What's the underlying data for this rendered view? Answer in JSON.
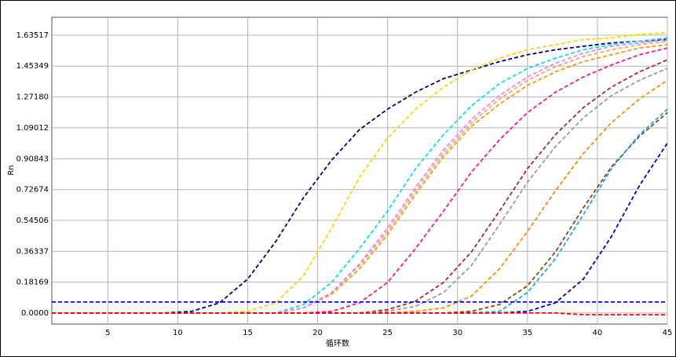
{
  "chart_data": {
    "type": "line",
    "xlabel": "循环数",
    "ylabel": "Rn",
    "x": [
      1,
      3,
      5,
      7,
      9,
      11,
      13,
      15,
      17,
      19,
      21,
      23,
      25,
      27,
      29,
      31,
      33,
      35,
      37,
      39,
      41,
      43,
      45
    ],
    "xlim": [
      1,
      45
    ],
    "xticks": [
      5,
      10,
      15,
      20,
      25,
      30,
      35,
      40,
      45
    ],
    "ylim": [
      -0.065,
      1.741
    ],
    "yticks": [
      {
        "value": 0,
        "label": "0.0000"
      },
      0.18169,
      0.36337,
      0.54506,
      0.72674,
      0.90843,
      1.09012,
      {
        "value": 1.2718,
        "label": "1.27180"
      },
      1.45349,
      1.63517
    ],
    "grid": true,
    "threshold": 0.065,
    "threshold_color": "#0000ee",
    "series": [
      {
        "color": "#000080",
        "values": [
          0,
          0,
          0,
          0,
          0,
          0.01,
          0.06,
          0.2,
          0.42,
          0.68,
          0.9,
          1.08,
          1.2,
          1.3,
          1.38,
          1.43,
          1.48,
          1.52,
          1.55,
          1.57,
          1.59,
          1.6,
          1.61
        ]
      },
      {
        "color": "#ffd700",
        "values": [
          0,
          0,
          0,
          0,
          0,
          0,
          0,
          0.01,
          0.06,
          0.22,
          0.5,
          0.8,
          1.03,
          1.2,
          1.33,
          1.43,
          1.5,
          1.55,
          1.58,
          1.61,
          1.62,
          1.64,
          1.65
        ]
      },
      {
        "color": "#00e5ee",
        "values": [
          0,
          0,
          0,
          0,
          0,
          0,
          0,
          0,
          0,
          0.05,
          0.18,
          0.38,
          0.6,
          0.85,
          1.05,
          1.22,
          1.35,
          1.44,
          1.5,
          1.55,
          1.58,
          1.6,
          1.62
        ]
      },
      {
        "color": "#ffa07a",
        "values": [
          0,
          0,
          0,
          0,
          0,
          0,
          0,
          0,
          0,
          0.03,
          0.12,
          0.28,
          0.48,
          0.72,
          0.94,
          1.12,
          1.26,
          1.37,
          1.45,
          1.51,
          1.55,
          1.58,
          1.6
        ]
      },
      {
        "color": "#ff9900",
        "values": [
          0,
          0,
          0,
          0,
          0,
          0,
          0,
          0,
          0,
          0.03,
          0.11,
          0.26,
          0.46,
          0.7,
          0.92,
          1.1,
          1.23,
          1.34,
          1.42,
          1.48,
          1.52,
          1.56,
          1.58
        ]
      },
      {
        "color": "#ee82ee",
        "values": [
          0,
          0,
          0,
          0,
          0,
          0,
          0,
          0,
          0,
          0.03,
          0.12,
          0.29,
          0.5,
          0.74,
          0.96,
          1.14,
          1.28,
          1.39,
          1.47,
          1.53,
          1.57,
          1.59,
          1.61
        ]
      },
      {
        "color": "#ff1493",
        "values": [
          0,
          0,
          0,
          0,
          0,
          0,
          0,
          0,
          0,
          0,
          0.01,
          0.06,
          0.18,
          0.38,
          0.6,
          0.83,
          1.02,
          1.18,
          1.3,
          1.39,
          1.46,
          1.52,
          1.56
        ]
      },
      {
        "color": "#a52a2a",
        "values": [
          0,
          0,
          0,
          0,
          0,
          0,
          0,
          0,
          0,
          0,
          0,
          0,
          0.02,
          0.07,
          0.18,
          0.36,
          0.6,
          0.85,
          1.05,
          1.21,
          1.33,
          1.42,
          1.49
        ]
      },
      {
        "color": "#999999",
        "values": [
          0,
          0,
          0,
          0,
          0,
          0,
          0,
          0,
          0,
          0,
          0,
          0,
          0.01,
          0.04,
          0.12,
          0.28,
          0.52,
          0.77,
          0.98,
          1.15,
          1.28,
          1.37,
          1.44
        ]
      },
      {
        "color": "#ff8c00",
        "values": [
          0,
          0,
          0,
          0,
          0,
          0,
          0,
          0,
          0,
          0,
          0,
          0,
          0,
          0.01,
          0.03,
          0.1,
          0.26,
          0.48,
          0.72,
          0.94,
          1.12,
          1.26,
          1.37
        ]
      },
      {
        "color": "#8b4513",
        "values": [
          0,
          0,
          0,
          0,
          0,
          0,
          0,
          0,
          0,
          0,
          0,
          0,
          0,
          0,
          0,
          0.01,
          0.05,
          0.16,
          0.36,
          0.62,
          0.86,
          1.04,
          1.18
        ]
      },
      {
        "color": "#1ea0ff",
        "values": [
          0,
          0,
          0,
          0,
          0,
          0,
          0,
          0,
          0,
          0,
          0,
          0,
          0,
          0,
          0,
          0,
          0.01,
          0.12,
          0.32,
          0.58,
          0.85,
          1.05,
          1.2
        ]
      },
      {
        "color": "#0000cd",
        "values": [
          0,
          0,
          0,
          0,
          0,
          0,
          0,
          0,
          0,
          0,
          0,
          0,
          0,
          0,
          0,
          0,
          0,
          0.01,
          0.06,
          0.2,
          0.45,
          0.75,
          1.0
        ]
      },
      {
        "color": "#ff0000",
        "values": [
          0,
          0,
          0,
          0,
          0,
          0,
          0,
          0,
          0,
          0,
          0,
          0,
          0,
          0,
          0,
          0,
          0,
          0,
          0,
          -0.01,
          -0.01,
          -0.01,
          -0.01
        ]
      }
    ]
  }
}
